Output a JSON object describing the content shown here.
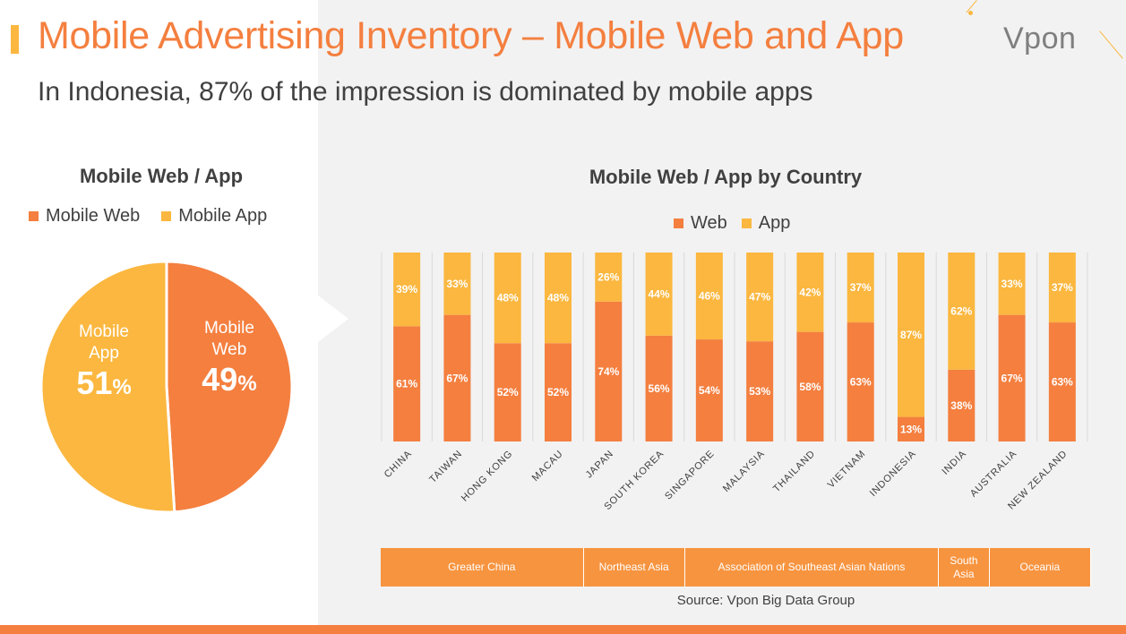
{
  "slide": {
    "title": "Mobile Advertising Inventory – Mobile Web and App",
    "subtitle": "In Indonesia, 87% of the impression is dominated by mobile apps",
    "logo": "Vpon",
    "source": "Source: Vpon Big Data Group"
  },
  "colors": {
    "web": "#f47f3f",
    "app": "#fbb73f",
    "region": "#f7943f"
  },
  "chart_data": [
    {
      "type": "pie",
      "title": "Mobile Web / App",
      "legend": [
        "Mobile Web",
        "Mobile App"
      ],
      "slices": [
        {
          "name": "Mobile Web",
          "label_line1": "Mobile",
          "label_line2": "Web",
          "value": 49,
          "pct_number": "49",
          "pct_sign": "%"
        },
        {
          "name": "Mobile App",
          "label_line1": "Mobile",
          "label_line2": "App",
          "value": 51,
          "pct_number": "51",
          "pct_sign": "%"
        }
      ]
    },
    {
      "type": "bar",
      "stacked": true,
      "title": "Mobile Web / App by Country",
      "legend": [
        "Web",
        "App"
      ],
      "ylim": [
        0,
        100
      ],
      "categories": [
        "CHINA",
        "TAIWAN",
        "HONG KONG",
        "MACAU",
        "JAPAN",
        "SOUTH KOREA",
        "SINGAPORE",
        "MALAYSIA",
        "THAILAND",
        "VIETNAM",
        "INDONESIA",
        "INDIA",
        "AUSTRALIA",
        "NEW ZEALAND"
      ],
      "series": [
        {
          "name": "Web",
          "values": [
            61,
            67,
            52,
            52,
            74,
            56,
            54,
            53,
            58,
            63,
            13,
            38,
            67,
            63
          ]
        },
        {
          "name": "App",
          "values": [
            39,
            33,
            48,
            48,
            26,
            44,
            46,
            47,
            42,
            37,
            87,
            62,
            33,
            37
          ]
        }
      ],
      "regions": [
        {
          "name": "Greater China",
          "span": 4
        },
        {
          "name": "Northeast Asia",
          "span": 2
        },
        {
          "name": "Association of Southeast Asian Nations",
          "span": 5
        },
        {
          "name": "South Asia",
          "span": 1
        },
        {
          "name": "Oceania",
          "span": 2
        }
      ]
    }
  ]
}
